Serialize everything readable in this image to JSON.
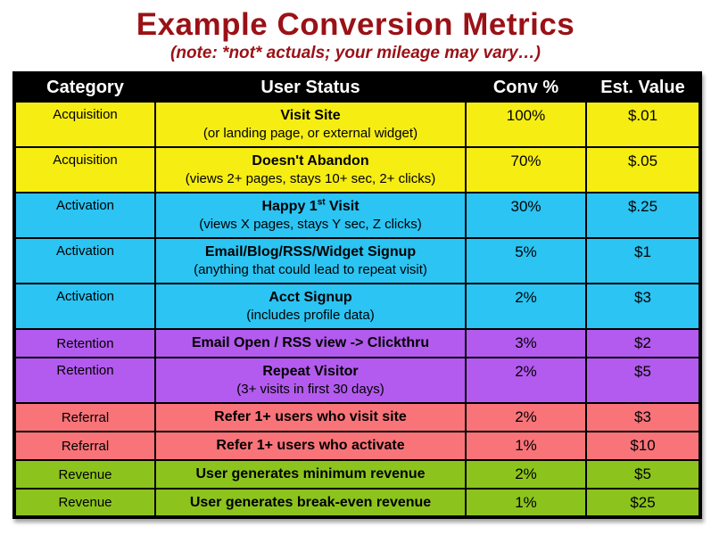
{
  "page": {
    "title": "Example Conversion Metrics",
    "subtitle": "(note: *not* actuals; your mileage may vary…)",
    "title_color": "#9A1116"
  },
  "chart_data": {
    "type": "table",
    "title": "Example Conversion Metrics",
    "subtitle": "(note: *not* actuals; your mileage may vary…)",
    "columns": [
      "Category",
      "User Status",
      "Conv %",
      "Est. Value"
    ],
    "category_colors": {
      "Acquisition": "#F6ED13",
      "Activation": "#2BC4F3",
      "Retention": "#B35BEE",
      "Referral": "#F87479",
      "Revenue": "#8CC41D"
    },
    "header_bg": "#000000",
    "header_text_color": "#FFFFFF",
    "rows": [
      {
        "category": "Acquisition",
        "status": "Visit Site",
        "status_note": "(or landing page, or external widget)",
        "conv": "100%",
        "value": "$.01"
      },
      {
        "category": "Acquisition",
        "status": "Doesn't Abandon",
        "status_note": "(views 2+ pages, stays 10+ sec, 2+ clicks)",
        "conv": "70%",
        "value": "$.05"
      },
      {
        "category": "Activation",
        "status": "Happy 1st Visit",
        "status_parts": {
          "pre": "Happy 1",
          "sup": "st",
          "post": " Visit"
        },
        "status_note": "(views X pages, stays Y sec, Z clicks)",
        "conv": "30%",
        "value": "$.25"
      },
      {
        "category": "Activation",
        "status": "Email/Blog/RSS/Widget Signup",
        "status_note": "(anything that could lead to repeat visit)",
        "conv": "5%",
        "value": "$1"
      },
      {
        "category": "Activation",
        "status": "Acct Signup",
        "status_note": "(includes profile data)",
        "conv": "2%",
        "value": "$3"
      },
      {
        "category": "Retention",
        "status": "Email Open / RSS view -> Clickthru",
        "status_note": "",
        "conv": "3%",
        "value": "$2"
      },
      {
        "category": "Retention",
        "status": "Repeat Visitor",
        "status_note": "(3+ visits in first 30 days)",
        "conv": "2%",
        "value": "$5"
      },
      {
        "category": "Referral",
        "status": "Refer 1+ users who visit site",
        "status_note": "",
        "conv": "2%",
        "value": "$3"
      },
      {
        "category": "Referral",
        "status": "Refer 1+ users who activate",
        "status_note": "",
        "conv": "1%",
        "value": "$10"
      },
      {
        "category": "Revenue",
        "status": "User generates minimum revenue",
        "status_note": "",
        "conv": "2%",
        "value": "$5"
      },
      {
        "category": "Revenue",
        "status": "User generates break-even revenue",
        "status_note": "",
        "conv": "1%",
        "value": "$25"
      }
    ]
  }
}
